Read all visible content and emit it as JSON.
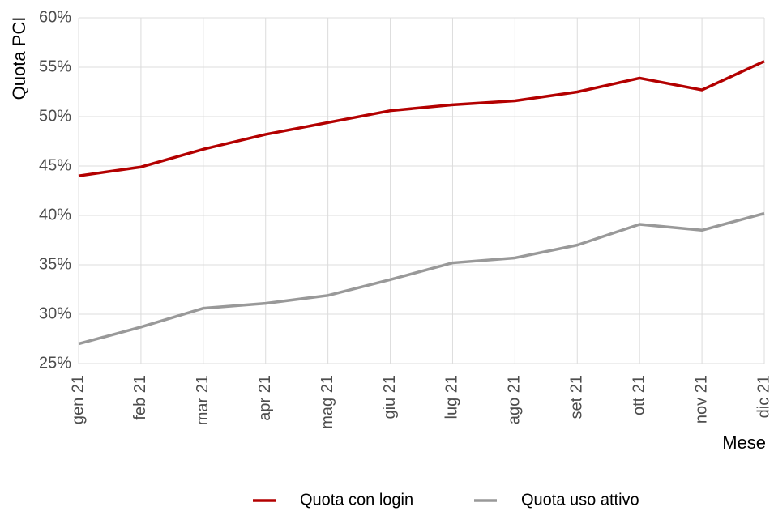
{
  "chart_data": {
    "type": "line",
    "xlabel": "Mese",
    "ylabel": "Quota PCI",
    "categories": [
      "gen 21",
      "feb 21",
      "mar 21",
      "apr 21",
      "mag 21",
      "giu 21",
      "lug 21",
      "ago 21",
      "set 21",
      "ott 21",
      "nov 21",
      "dic 21"
    ],
    "series": [
      {
        "name": "Quota con login",
        "color": "#b30000",
        "values": [
          44.0,
          44.9,
          46.7,
          48.2,
          49.4,
          50.6,
          51.2,
          51.6,
          52.5,
          53.9,
          52.7,
          55.6
        ]
      },
      {
        "name": "Quota uso attivo",
        "color": "#999999",
        "values": [
          27.0,
          28.7,
          30.6,
          31.1,
          31.9,
          33.5,
          35.2,
          35.7,
          37.0,
          39.1,
          38.5,
          40.2
        ]
      }
    ],
    "ylim": [
      25,
      60
    ],
    "yticks": [
      {
        "value": 25,
        "label": "25%"
      },
      {
        "value": 30,
        "label": "30%"
      },
      {
        "value": 35,
        "label": "35%"
      },
      {
        "value": 40,
        "label": "40%"
      },
      {
        "value": 45,
        "label": "45%"
      },
      {
        "value": 50,
        "label": "50%"
      },
      {
        "value": 55,
        "label": "55%"
      },
      {
        "value": 60,
        "label": "60%"
      }
    ],
    "grid": true,
    "legend": "bottom"
  }
}
